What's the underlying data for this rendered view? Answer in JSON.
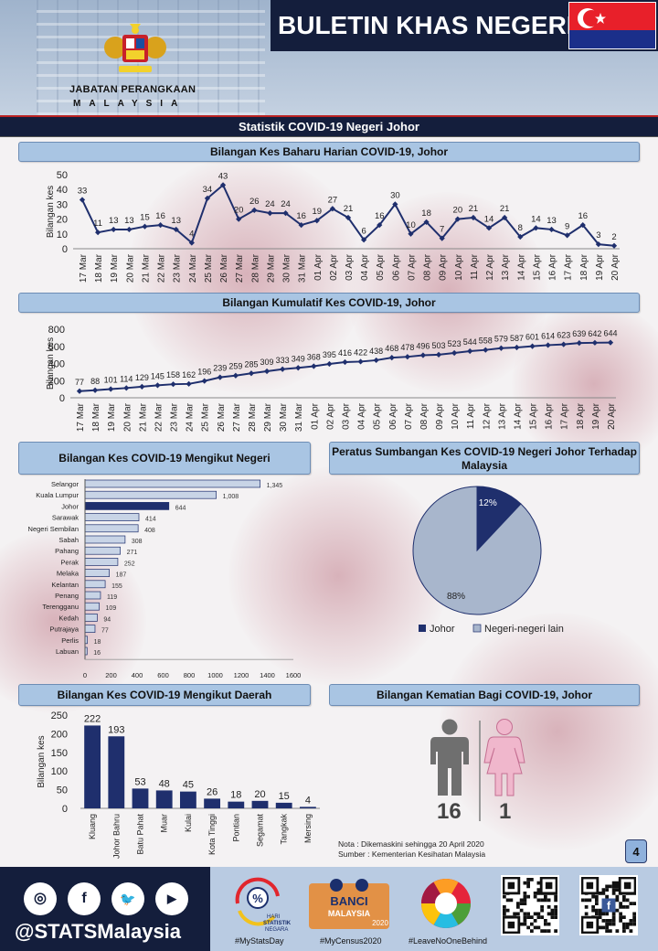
{
  "header": {
    "title": "BULETIN KHAS NEGERI",
    "agency_line1": "JABATAN PERANGKAAN",
    "agency_line2": "MALAYSIA"
  },
  "section_title": "Statistik COVID-19 Negeri Johor",
  "colors": {
    "navy": "#141e3c",
    "series": "#1f2f6d",
    "panel_header": "#a9c5e3",
    "johor_bar": "#1f2f6d",
    "other_bar": "#c8d4e6",
    "pie_other": "#a8b6cc"
  },
  "chart_data": [
    {
      "type": "line",
      "title": "Bilangan  Kes Baharu Harian COVID-19, Johor",
      "ylabel": "Bilangan kes",
      "ylim": [
        0,
        50
      ],
      "yticks": [
        0,
        10,
        20,
        30,
        40,
        50
      ],
      "categories": [
        "17 Mar",
        "18 Mar",
        "19 Mar",
        "20 Mar",
        "21 Mar",
        "22 Mar",
        "23 Mar",
        "24 Mar",
        "25 Mar",
        "26 Mar",
        "27 Mar",
        "28 Mar",
        "29 Mar",
        "30 Mar",
        "31 Mar",
        "01 Apr",
        "02 Apr",
        "03 Apr",
        "04 Apr",
        "05 Apr",
        "06 Apr",
        "07 Apr",
        "08 Apr",
        "09 Apr",
        "10 Apr",
        "11 Apr",
        "12 Apr",
        "13 Apr",
        "14 Apr",
        "15 Apr",
        "16 Apr",
        "17 Apr",
        "18 Apr",
        "19 Apr",
        "20 Apr"
      ],
      "values": [
        33,
        11,
        13,
        13,
        15,
        16,
        13,
        4,
        34,
        43,
        20,
        26,
        24,
        24,
        16,
        19,
        27,
        21,
        6,
        16,
        30,
        10,
        18,
        7,
        20,
        21,
        14,
        21,
        8,
        14,
        13,
        9,
        16,
        3,
        2
      ]
    },
    {
      "type": "line",
      "title": "Bilangan  Kumulatif Kes COVID-19, Johor",
      "ylabel": "Bilangan kes",
      "ylim": [
        0,
        800
      ],
      "yticks": [
        0,
        200,
        400,
        600,
        800
      ],
      "categories": [
        "17 Mar",
        "18 Mar",
        "19 Mar",
        "20 Mar",
        "21 Mar",
        "22 Mar",
        "23 Mar",
        "24 Mar",
        "25 Mar",
        "26 Mar",
        "27 Mar",
        "28 Mar",
        "29 Mar",
        "30 Mar",
        "31 Mar",
        "01 Apr",
        "02 Apr",
        "03 Apr",
        "04 Apr",
        "05 Apr",
        "06 Apr",
        "07 Apr",
        "08 Apr",
        "09 Apr",
        "10 Apr",
        "11 Apr",
        "12 Apr",
        "13 Apr",
        "14 Apr",
        "15 Apr",
        "16 Apr",
        "17 Apr",
        "18 Apr",
        "19 Apr",
        "20 Apr"
      ],
      "values": [
        77,
        88,
        101,
        114,
        129,
        145,
        158,
        162,
        196,
        239,
        259,
        285,
        309,
        333,
        349,
        368,
        395,
        416,
        422,
        438,
        468,
        478,
        496,
        503,
        523,
        544,
        558,
        579,
        587,
        601,
        614,
        623,
        639,
        642,
        644
      ]
    },
    {
      "type": "bar",
      "orientation": "horizontal",
      "title": "Bilangan  Kes COVID-19 Mengikut Negeri",
      "xlim": [
        0,
        1600
      ],
      "xticks": [
        0,
        200,
        400,
        600,
        800,
        1000,
        1200,
        1400,
        1600
      ],
      "categories": [
        "Selangor",
        "Kuala Lumpur",
        "Johor",
        "Sarawak",
        "Negeri Sembilan",
        "Sabah",
        "Pahang",
        "Perak",
        "Melaka",
        "Kelantan",
        "Penang",
        "Terengganu",
        "Kedah",
        "Putrajaya",
        "Perlis",
        "Labuan"
      ],
      "values": [
        1345,
        1008,
        644,
        414,
        408,
        308,
        271,
        252,
        187,
        155,
        119,
        109,
        94,
        77,
        18,
        16
      ],
      "value_labels": [
        "1,345",
        "1,008",
        "644",
        "414",
        "408",
        "308",
        "271",
        "252",
        "187",
        "155",
        "119",
        "109",
        "94",
        "77",
        "18",
        "16"
      ],
      "highlight": "Johor"
    },
    {
      "type": "pie",
      "title": "Peratus Sumbangan  Kes COVID-19 Negeri Johor Terhadap Malaysia",
      "labels": [
        "Johor",
        "Negeri-negeri lain"
      ],
      "values": [
        12,
        88
      ],
      "value_labels": [
        "12%",
        "88%"
      ],
      "legend": "bottom"
    },
    {
      "type": "bar",
      "title": "Bilangan  Kes COVID-19 Mengikut Daerah",
      "ylabel": "Bilangan kes",
      "ylim": [
        0,
        250
      ],
      "yticks": [
        0,
        50,
        100,
        150,
        200,
        250
      ],
      "categories": [
        "Kluang",
        "Johor Bahru",
        "Batu Pahat",
        "Muar",
        "Kulai",
        "Kota Tinggi",
        "Pontian",
        "Segamat",
        "Tangkak",
        "Mersing"
      ],
      "values": [
        222,
        193,
        53,
        48,
        45,
        26,
        18,
        20,
        15,
        4
      ]
    }
  ],
  "deaths": {
    "title": "Bilangan Kematian Bagi COVID-19, Johor",
    "male": "16",
    "female": "1"
  },
  "note": {
    "line1": "Nota       : Dikemaskini  sehingga 20 April  2020",
    "line2": "Sumber :  Kementerian Kesihatan Malaysia"
  },
  "page_number": "4",
  "footer": {
    "handle": "@STATSMalaysia",
    "social_icons": [
      "instagram-icon",
      "facebook-icon",
      "twitter-icon",
      "youtube-icon"
    ],
    "tags": [
      "#MyStatsDay",
      "#MyCensus2020",
      "#LeaveNoOneBehind"
    ],
    "logo1_text": "HARI STATISTIK NEGARA",
    "logo2_text": "BANCI MALAYSIA",
    "logo2_year": "2020"
  }
}
